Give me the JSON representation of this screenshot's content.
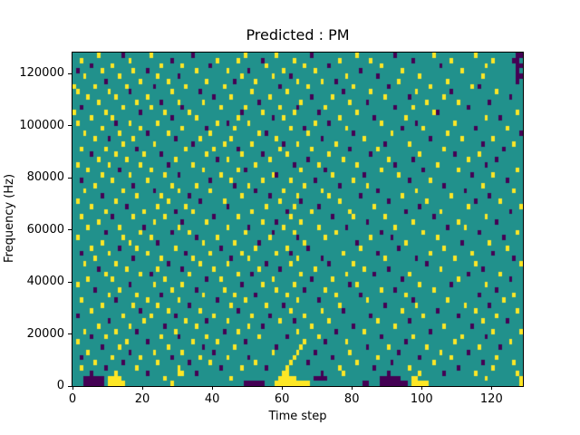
{
  "figure": {
    "background_color": "#ffffff"
  },
  "chart_data": {
    "type": "heatmap",
    "title": "Predicted : PM",
    "xlabel": "Time step",
    "ylabel": "Frequency (Hz)",
    "xlim": [
      0,
      129
    ],
    "ylim": [
      0,
      128000
    ],
    "x_ticks": [
      0,
      20,
      40,
      60,
      80,
      100,
      120
    ],
    "y_ticks": [
      0,
      20000,
      40000,
      60000,
      80000,
      100000,
      120000
    ],
    "grid": false,
    "legend": null,
    "n_cols": 129,
    "n_rows": 64,
    "row_order": "bottom_to_top",
    "cell_encoding": {
      "default": "teal background",
      "y": "yellow cell",
      "p": "purple cell"
    },
    "colors": {
      "background": "#21918c",
      "yellow": "#fde725",
      "purple": "#440154",
      "axes": "#000000",
      "figure_bg": "#ffffff"
    },
    "rows": [
      {
        "p": [
          3,
          4,
          5,
          6,
          7,
          8,
          49,
          50,
          51,
          52,
          53,
          54,
          83,
          84,
          88,
          89,
          90,
          91,
          92,
          93,
          94,
          95
        ],
        "y": [
          10,
          11,
          12,
          13,
          14,
          28,
          58,
          59,
          60,
          61,
          62,
          63,
          64,
          65,
          66,
          67,
          97,
          98,
          99,
          100,
          101,
          128
        ]
      },
      {
        "p": [
          3,
          4,
          5,
          6,
          7,
          8,
          69,
          70,
          71,
          72,
          88,
          89,
          90,
          91,
          92,
          93
        ],
        "y": [
          10,
          11,
          12,
          13,
          26,
          45,
          59,
          60,
          61,
          62,
          63,
          97,
          98,
          118,
          128
        ]
      },
      {
        "p": [
          5,
          21,
          35,
          71,
          90,
          106
        ],
        "y": [
          12,
          30,
          31,
          60,
          61,
          77,
          99,
          115,
          127
        ]
      },
      {
        "p": [
          9,
          42,
          55,
          86,
          110
        ],
        "y": [
          2,
          18,
          30,
          48,
          61,
          76,
          96,
          120
        ]
      },
      {
        "p": [
          14,
          33,
          67,
          91,
          117
        ],
        "y": [
          6,
          24,
          39,
          52,
          62,
          81,
          103,
          126
        ]
      },
      {
        "p": [
          2,
          28,
          50,
          74,
          99
        ],
        "y": [
          11,
          19,
          36,
          44,
          63,
          87,
          108,
          121
        ]
      },
      {
        "p": [
          16,
          40,
          69,
          93,
          113
        ],
        "y": [
          4,
          23,
          31,
          57,
          64,
          79,
          105
        ]
      },
      {
        "p": [
          8,
          37,
          58,
          84,
          122
        ],
        "y": [
          13,
          27,
          46,
          65,
          90,
          101,
          116
        ]
      },
      {
        "p": [
          21,
          49,
          72,
          95
        ],
        "y": [
          1,
          15,
          34,
          41,
          66,
          78,
          109,
          125
        ]
      },
      {
        "p": [
          5,
          30,
          61,
          88,
          118
        ],
        "y": [
          9,
          25,
          38,
          53,
          70,
          97,
          111
        ]
      },
      {
        "p": [
          18,
          43,
          75,
          102
        ],
        "y": [
          3,
          12,
          29,
          47,
          64,
          83,
          120,
          128
        ]
      },
      {
        "p": [
          26,
          54,
          80,
          114
        ],
        "y": [
          7,
          16,
          35,
          50,
          68,
          92,
          106
        ]
      },
      {
        "p": [
          10,
          38,
          63,
          96,
          124
        ],
        "y": [
          20,
          32,
          44,
          59,
          73,
          87,
          117
        ]
      },
      {
        "p": [
          1,
          29,
          56,
          85,
          110
        ],
        "y": [
          14,
          22,
          40,
          51,
          66,
          100,
          121
        ]
      },
      {
        "p": [
          19,
          47,
          77,
          104
        ],
        "y": [
          5,
          27,
          36,
          62,
          71,
          94,
          115,
          127
        ]
      },
      {
        "p": [
          33,
          60,
          89,
          119
        ],
        "y": [
          8,
          17,
          24,
          45,
          55,
          76,
          98,
          112
        ]
      },
      {
        "p": [
          12,
          41,
          70,
          97
        ],
        "y": [
          2,
          21,
          30,
          49,
          64,
          84,
          107,
          123
        ]
      },
      {
        "p": [
          25,
          52,
          82,
          116
        ],
        "y": [
          10,
          18,
          37,
          46,
          61,
          75,
          95,
          126
        ]
      },
      {
        "p": [
          6,
          35,
          66,
          92,
          121
        ],
        "y": [
          13,
          28,
          43,
          58,
          72,
          88,
          103
        ]
      },
      {
        "p": [
          16,
          48,
          79,
          108
        ],
        "y": [
          1,
          23,
          31,
          54,
          63,
          81,
          99,
          118
        ]
      },
      {
        "p": [
          38,
          68,
          94,
          125
        ],
        "y": [
          4,
          11,
          26,
          42,
          57,
          74,
          110
        ]
      },
      {
        "p": [
          22,
          51,
          86,
          113
        ],
        "y": [
          9,
          19,
          33,
          47,
          65,
          78,
          96,
          122
        ]
      },
      {
        "p": [
          7,
          31,
          59,
          90,
          117
        ],
        "y": [
          15,
          24,
          40,
          53,
          69,
          83,
          105
        ]
      },
      {
        "p": [
          27,
          55,
          73,
          101
        ],
        "y": [
          3,
          12,
          36,
          44,
          62,
          80,
          115,
          128
        ]
      },
      {
        "p": [
          17,
          45,
          71,
          98,
          126
        ],
        "y": [
          6,
          25,
          34,
          50,
          64,
          89,
          109
        ]
      },
      {
        "p": [
          2,
          32,
          62,
          87,
          120
        ],
        "y": [
          10,
          21,
          39,
          48,
          58,
          77,
          102,
          114
        ]
      },
      {
        "p": [
          13,
          42,
          67,
          93
        ],
        "y": [
          5,
          18,
          29,
          52,
          61,
          82,
          106,
          124
        ]
      },
      {
        "p": [
          24,
          53,
          81,
          111
        ],
        "y": [
          8,
          16,
          37,
          46,
          66,
          95,
          119
        ]
      },
      {
        "p": [
          35,
          64,
          91,
          123
        ],
        "y": [
          1,
          14,
          22,
          41,
          56,
          72,
          85,
          104
        ]
      },
      {
        "p": [
          9,
          28,
          57,
          88,
          116
        ],
        "y": [
          19,
          33,
          49,
          63,
          75,
          100,
          127
        ]
      },
      {
        "p": [
          20,
          50,
          78,
          107
        ],
        "y": [
          4,
          13,
          30,
          44,
          60,
          70,
          92,
          112
        ]
      },
      {
        "p": [
          31,
          58,
          84,
          121
        ],
        "y": [
          7,
          23,
          38,
          54,
          65,
          97,
          110
        ]
      },
      {
        "p": [
          11,
          40,
          74,
          103
        ],
        "y": [
          2,
          17,
          26,
          47,
          62,
          80,
          89,
          118
        ]
      },
      {
        "p": [
          29,
          61,
          95,
          125
        ],
        "y": [
          9,
          20,
          34,
          51,
          68,
          79,
          105
        ]
      },
      {
        "p": [
          15,
          44,
          70,
          99
        ],
        "y": [
          5,
          24,
          32,
          55,
          63,
          86,
          113,
          128
        ]
      },
      {
        "p": [
          36,
          65,
          90,
          115
        ],
        "y": [
          1,
          12,
          27,
          43,
          59,
          76,
          101,
          122
        ]
      },
      {
        "p": [
          8,
          33,
          56,
          82,
          119
        ],
        "y": [
          18,
          25,
          48,
          64,
          73,
          94,
          108
        ]
      },
      {
        "p": [
          23,
          52,
          87,
          112
        ],
        "y": [
          3,
          14,
          30,
          39,
          60,
          71,
          98,
          126
        ]
      },
      {
        "p": [
          17,
          46,
          76,
          106
        ],
        "y": [
          6,
          28,
          35,
          50,
          66,
          84,
          117
        ]
      },
      {
        "p": [
          2,
          39,
          69,
          96,
          124
        ],
        "y": [
          11,
          21,
          45,
          54,
          62,
          80,
          102
        ]
      },
      {
        "p": [
          30,
          58,
          83,
          114
        ],
        "y": [
          8,
          16,
          26,
          42,
          57,
          74,
          93,
          120
        ]
      },
      {
        "p": [
          13,
          49,
          72,
          100
        ],
        "y": [
          4,
          22,
          37,
          47,
          65,
          88,
          110,
          127
        ]
      },
      {
        "p": [
          27,
          63,
          92,
          118
        ],
        "y": [
          1,
          10,
          19,
          34,
          52,
          70,
          81,
          104
        ]
      },
      {
        "p": [
          41,
          67,
          97,
          121
        ],
        "y": [
          7,
          15,
          29,
          44,
          56,
          77,
          90,
          113
        ]
      },
      {
        "p": [
          5,
          25,
          54,
          85,
          109
        ],
        "y": [
          12,
          20,
          38,
          48,
          61,
          73,
          99,
          116
        ]
      },
      {
        "p": [
          18,
          47,
          79,
          123
        ],
        "y": [
          2,
          9,
          32,
          40,
          59,
          68,
          87,
          106
        ]
      },
      {
        "p": [
          34,
          60,
          89,
          117
        ],
        "y": [
          14,
          23,
          43,
          51,
          64,
          75,
          96,
          126
        ]
      },
      {
        "p": [
          10,
          29,
          71,
          102
        ],
        "y": [
          6,
          17,
          36,
          45,
          58,
          83,
          111,
          120
        ]
      },
      {
        "p": [
          21,
          55,
          80,
          128
        ],
        "y": [
          3,
          13,
          27,
          39,
          53,
          67,
          91,
          107
        ]
      },
      {
        "p": [
          38,
          66,
          94,
          115
        ],
        "y": [
          8,
          19,
          31,
          46,
          62,
          78,
          100,
          124
        ]
      },
      {
        "p": [
          12,
          44,
          73,
          98
        ],
        "y": [
          1,
          16,
          24,
          41,
          50,
          69,
          88,
          109
        ]
      },
      {
        "p": [
          28,
          57,
          86,
          122
        ],
        "y": [
          5,
          11,
          35,
          47,
          60,
          76,
          95,
          118
        ]
      },
      {
        "p": [
          19,
          48,
          70,
          104
        ],
        "y": [
          0,
          9,
          26,
          33,
          54,
          63,
          81,
          103,
          127
        ]
      },
      {
        "p": [
          2,
          31,
          64,
          92,
          113
        ],
        "y": [
          14,
          22,
          42,
          49,
          59,
          72,
          97
        ]
      },
      {
        "p": [
          25,
          53,
          84,
          119
        ],
        "y": [
          7,
          18,
          30,
          37,
          65,
          79,
          101,
          110
        ]
      },
      {
        "p": [
          40,
          68,
          96,
          125
        ],
        "y": [
          4,
          12,
          21,
          45,
          56,
          74,
          89,
          106
        ]
      },
      {
        "p": [
          16,
          36,
          77,
          108
        ],
        "y": [
          1,
          10,
          28,
          51,
          61,
          85,
          98,
          121
        ]
      },
      {
        "p": [
          23,
          59,
          90,
          116
        ],
        "y": [
          0,
          6,
          15,
          32,
          43,
          67,
          80,
          102,
          114
        ]
      },
      {
        "p": [
          9,
          46,
          75,
          127
        ],
        "y": [
          19,
          27,
          38,
          52,
          64,
          71,
          93,
          107
        ]
      },
      {
        "p": [
          30,
          62,
          87,
          127,
          128
        ],
        "y": [
          3,
          13,
          24,
          48,
          57,
          78,
          99,
          117
        ]
      },
      {
        "p": [
          1,
          21,
          50,
          82,
          127
        ],
        "y": [
          8,
          17,
          35,
          44,
          60,
          69,
          94,
          111
        ]
      },
      {
        "p": [
          5,
          39,
          73,
          105,
          127,
          128
        ],
        "y": [
          11,
          25,
          31,
          55,
          66,
          88,
          118
        ]
      },
      {
        "p": [
          28,
          54,
          97,
          126,
          127
        ],
        "y": [
          2,
          16,
          41,
          47,
          63,
          76,
          85,
          108,
          120
        ]
      },
      {
        "p": [
          14,
          34,
          68,
          92,
          127,
          128
        ],
        "y": [
          7,
          22,
          49,
          58,
          81,
          103,
          115
        ]
      }
    ]
  }
}
